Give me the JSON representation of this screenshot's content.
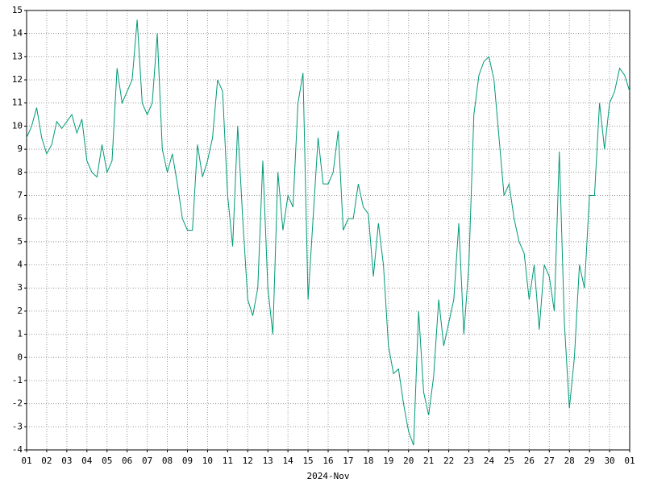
{
  "chart_data": {
    "type": "line",
    "x_label": "2024-Nov",
    "x": [
      1,
      1.25,
      1.5,
      1.75,
      2,
      2.25,
      2.5,
      2.75,
      3,
      3.25,
      3.5,
      3.75,
      4,
      4.25,
      4.5,
      4.75,
      5,
      5.25,
      5.5,
      5.75,
      6,
      6.25,
      6.5,
      6.75,
      7,
      7.25,
      7.5,
      7.75,
      8,
      8.25,
      8.5,
      8.75,
      9,
      9.25,
      9.5,
      9.75,
      10,
      10.25,
      10.5,
      10.75,
      11,
      11.25,
      11.5,
      11.75,
      12,
      12.25,
      12.5,
      12.75,
      13,
      13.25,
      13.5,
      13.75,
      14,
      14.25,
      14.5,
      14.75,
      15,
      15.25,
      15.5,
      15.75,
      16,
      16.25,
      16.5,
      16.75,
      17,
      17.25,
      17.5,
      17.75,
      18,
      18.25,
      18.5,
      18.75,
      19,
      19.25,
      19.5,
      19.75,
      20,
      20.25,
      20.5,
      20.75,
      21,
      21.25,
      21.5,
      21.75,
      22,
      22.25,
      22.5,
      22.75,
      23,
      23.25,
      23.5,
      23.75,
      24,
      24.25,
      24.5,
      24.75,
      25,
      25.25,
      25.5,
      25.75,
      26,
      26.25,
      26.5,
      26.75,
      27,
      27.25,
      27.5,
      27.75,
      28,
      28.25,
      28.5,
      28.75,
      29,
      29.25,
      29.5,
      29.75,
      30,
      30.25,
      30.5,
      30.75,
      31
    ],
    "series": [
      {
        "color": "#009977",
        "values": [
          9.5,
          10,
          10.8,
          9.5,
          8.8,
          9.2,
          10.2,
          9.9,
          10.2,
          10.5,
          9.7,
          10.3,
          8.5,
          8,
          7.8,
          9.2,
          8,
          8.5,
          12.5,
          11,
          11.5,
          12,
          14.6,
          11,
          10.5,
          11,
          14,
          9,
          8,
          8.8,
          7.5,
          6,
          5.5,
          5.5,
          9.2,
          7.8,
          8.5,
          9.5,
          12,
          11.5,
          7,
          4.8,
          10,
          6,
          2.5,
          1.8,
          3,
          8.5,
          3,
          1,
          8,
          5.5,
          7,
          6.5,
          11,
          12.3,
          2.5,
          6,
          9.5,
          7.5,
          7.5,
          8,
          9.8,
          5.5,
          6,
          6,
          7.5,
          6.5,
          6.2,
          3.5,
          5.8,
          4,
          0.5,
          -0.7,
          -0.5,
          -2,
          -3.2,
          -3.8,
          2,
          -1.5,
          -2.5,
          -0.8,
          2.5,
          0.5,
          1.5,
          2.5,
          5.8,
          1,
          4,
          10.5,
          12.2,
          12.8,
          13,
          12,
          9.5,
          7,
          7.5,
          6,
          5,
          4.5,
          2.5,
          4,
          1.2,
          4,
          3.5,
          2,
          8.9,
          1.5,
          -2.2,
          0,
          4,
          3,
          7,
          7,
          11,
          9,
          11,
          11.5,
          12.5,
          12.2,
          11.5
        ]
      }
    ],
    "xlim": [
      1,
      31
    ],
    "xticks": [
      {
        "value": 1,
        "label": "01"
      },
      {
        "value": 2,
        "label": "02"
      },
      {
        "value": 3,
        "label": "03"
      },
      {
        "value": 4,
        "label": "04"
      },
      {
        "value": 5,
        "label": "05"
      },
      {
        "value": 6,
        "label": "06"
      },
      {
        "value": 7,
        "label": "07"
      },
      {
        "value": 8,
        "label": "08"
      },
      {
        "value": 9,
        "label": "09"
      },
      {
        "value": 10,
        "label": "10"
      },
      {
        "value": 11,
        "label": "11"
      },
      {
        "value": 12,
        "label": "12"
      },
      {
        "value": 13,
        "label": "13"
      },
      {
        "value": 14,
        "label": "14"
      },
      {
        "value": 15,
        "label": "15"
      },
      {
        "value": 16,
        "label": "16"
      },
      {
        "value": 17,
        "label": "17"
      },
      {
        "value": 18,
        "label": "18"
      },
      {
        "value": 19,
        "label": "19"
      },
      {
        "value": 20,
        "label": "20"
      },
      {
        "value": 21,
        "label": "21"
      },
      {
        "value": 22,
        "label": "22"
      },
      {
        "value": 23,
        "label": "23"
      },
      {
        "value": 24,
        "label": "24"
      },
      {
        "value": 25,
        "label": "25"
      },
      {
        "value": 26,
        "label": "26"
      },
      {
        "value": 27,
        "label": "27"
      },
      {
        "value": 28,
        "label": "28"
      },
      {
        "value": 29,
        "label": "29"
      },
      {
        "value": 30,
        "label": "30"
      },
      {
        "value": 31,
        "label": "01"
      }
    ],
    "ylim": [
      -4,
      15
    ],
    "yticks": [
      -4,
      -3,
      -2,
      -1,
      0,
      1,
      2,
      3,
      4,
      5,
      6,
      7,
      8,
      9,
      10,
      11,
      12,
      13,
      14,
      15
    ],
    "grid": true
  }
}
